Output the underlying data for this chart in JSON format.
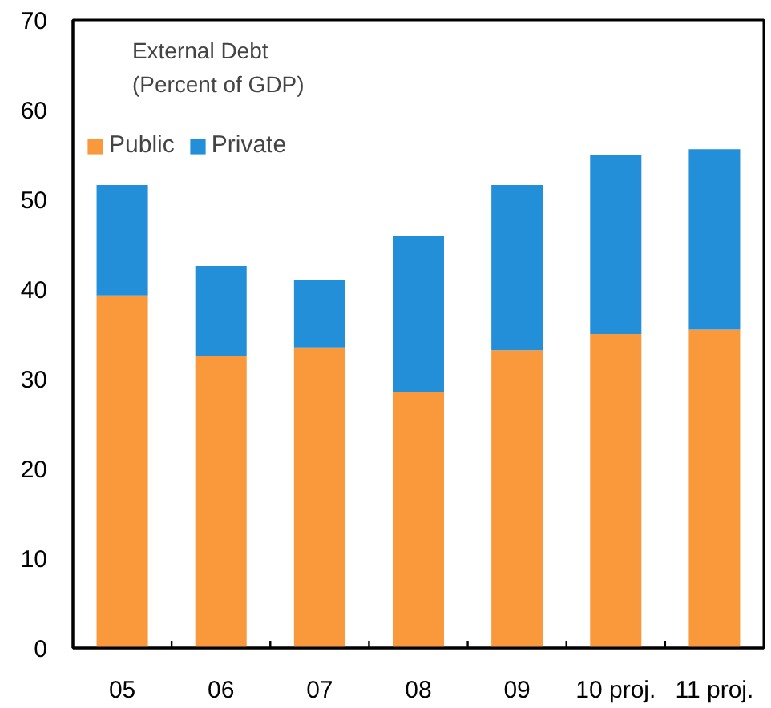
{
  "chart_data": {
    "type": "bar",
    "stacked": true,
    "annotations": [
      "External Debt\n(Percent of GDP)"
    ],
    "categories": [
      "05",
      "06",
      "07",
      "08",
      "09",
      "10 proj.",
      "11 proj."
    ],
    "series": [
      {
        "name": "Public",
        "color": "#fa983c",
        "values": [
          39.3,
          32.6,
          33.5,
          28.5,
          33.2,
          35.0,
          35.5
        ]
      },
      {
        "name": "Private",
        "color": "#228fd8",
        "values": [
          12.3,
          10.0,
          7.5,
          17.4,
          18.4,
          19.9,
          20.1
        ]
      }
    ],
    "ylim": [
      0,
      70
    ],
    "yticks": [
      0,
      10,
      20,
      30,
      40,
      50,
      60,
      70
    ],
    "grid": false,
    "legend": "top left"
  }
}
